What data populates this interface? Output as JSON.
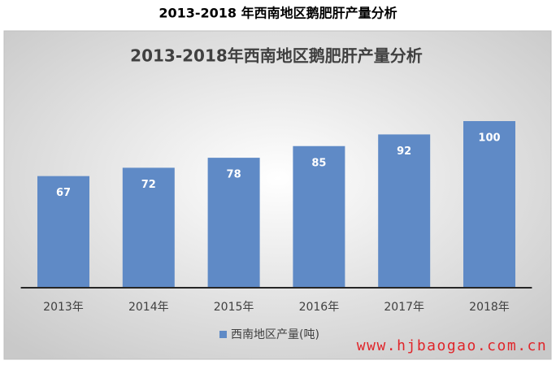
{
  "chart_data": {
    "type": "bar",
    "page_title": "2013-2018 年西南地区鹅肥肝产量分析",
    "title": "2013-2018年西南地区鹅肥肝产量分析",
    "categories": [
      "2013年",
      "2014年",
      "2015年",
      "2016年",
      "2017年",
      "2018年"
    ],
    "series": [
      {
        "name": "西南地区产量(吨)",
        "color": "#5f8ac6",
        "values": [
          67,
          72,
          78,
          85,
          92,
          100
        ]
      }
    ],
    "watermark": "www.hjbaogao.com.cn"
  }
}
